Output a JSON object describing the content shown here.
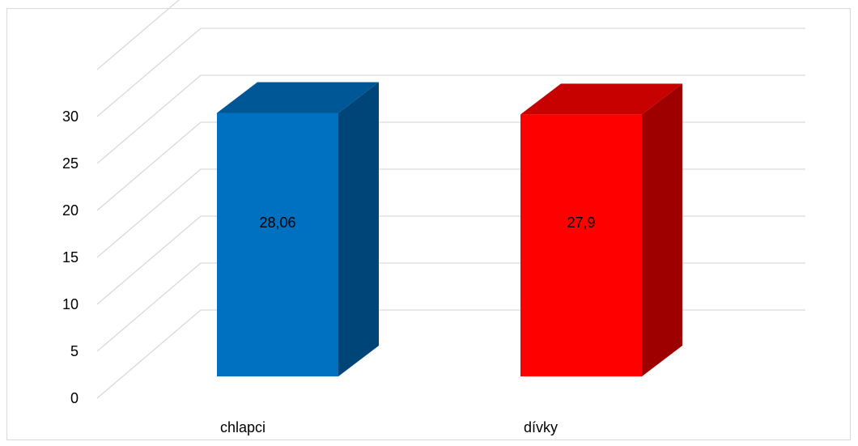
{
  "chart_data": {
    "type": "bar",
    "style": "3d-column",
    "categories": [
      "chlapci",
      "dívky"
    ],
    "values": [
      28.06,
      27.9
    ],
    "data_labels": [
      "28,06",
      "27,9"
    ],
    "colors": [
      "#0070C0",
      "#FF0000"
    ],
    "ylim": [
      0,
      30
    ],
    "yticks": [
      "0",
      "5",
      "10",
      "15",
      "20",
      "25",
      "30"
    ],
    "title": "",
    "xlabel": "",
    "ylabel": "",
    "grid": true,
    "legend": "none"
  }
}
